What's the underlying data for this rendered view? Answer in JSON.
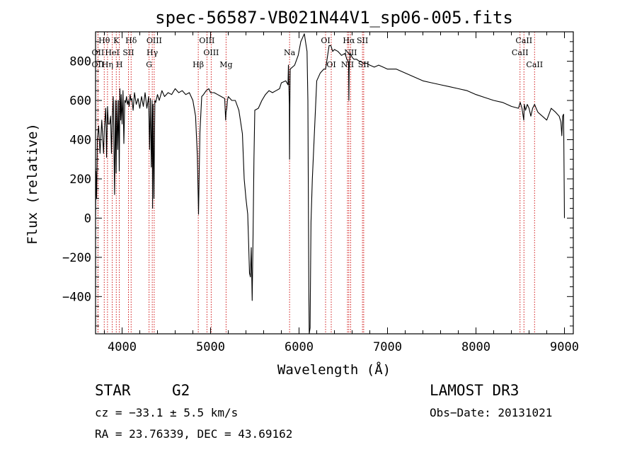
{
  "chart_data": {
    "type": "line",
    "title": "spec-56587-VB021N44V1_sp06-005.fits",
    "xlabel": "Wavelength (Å)",
    "ylabel": "Flux (relative)",
    "xlim": [
      3700,
      9100
    ],
    "ylim": [
      -590,
      950
    ],
    "x_ticks": [
      4000,
      5000,
      6000,
      7000,
      8000,
      9000
    ],
    "x_tick_labels": [
      "4000",
      "5000",
      "6000",
      "7000",
      "8000",
      "9000"
    ],
    "y_ticks": [
      -400,
      -200,
      0,
      200,
      400,
      600,
      800
    ],
    "y_tick_labels": [
      "−400",
      "−200",
      "0",
      "200",
      "400",
      "600",
      "800"
    ],
    "series": [
      {
        "name": "spectrum",
        "x": [
          3700,
          3705,
          3712,
          3720,
          3735,
          3750,
          3770,
          3790,
          3800,
          3815,
          3825,
          3835,
          3845,
          3860,
          3870,
          3880,
          3890,
          3900,
          3915,
          3925,
          3933,
          3941,
          3950,
          3960,
          3968,
          3975,
          3985,
          3990,
          4000,
          4010,
          4020,
          4030,
          4040,
          4050,
          4060,
          4070,
          4080,
          4090,
          4100,
          4110,
          4125,
          4140,
          4160,
          4180,
          4200,
          4220,
          4240,
          4260,
          4280,
          4300,
          4310,
          4320,
          4330,
          4340,
          4345,
          4350,
          4360,
          4370,
          4380,
          4400,
          4420,
          4450,
          4480,
          4520,
          4560,
          4600,
          4640,
          4680,
          4720,
          4760,
          4800,
          4830,
          4850,
          4860,
          4864,
          4870,
          4880,
          4900,
          4920,
          4950,
          4980,
          5000,
          5040,
          5080,
          5120,
          5160,
          5170,
          5175,
          5183,
          5190,
          5200,
          5240,
          5280,
          5320,
          5360,
          5380,
          5400,
          5420,
          5430,
          5440,
          5450,
          5460,
          5470,
          5480,
          5490,
          5500,
          5540,
          5580,
          5620,
          5660,
          5700,
          5740,
          5780,
          5800,
          5850,
          5875,
          5880,
          5890,
          5893,
          5896,
          5900,
          5950,
          5990,
          6020,
          6040,
          6060,
          6080,
          6090,
          6100,
          6110,
          6115,
          6125,
          6135,
          6150,
          6200,
          6240,
          6280,
          6300,
          6320,
          6340,
          6360,
          6380,
          6400,
          6440,
          6480,
          6520,
          6540,
          6555,
          6560,
          6563,
          6567,
          6570,
          6580,
          6600,
          6620,
          6650,
          6680,
          6700,
          6720,
          6760,
          6800,
          6850,
          6900,
          6950,
          7000,
          7100,
          7200,
          7300,
          7400,
          7500,
          7600,
          7700,
          7800,
          7900,
          8000,
          8100,
          8200,
          8300,
          8400,
          8480,
          8500,
          8520,
          8540,
          8546,
          8560,
          8580,
          8600,
          8620,
          8640,
          8662,
          8680,
          8700,
          8800,
          8850,
          8900,
          8940,
          8960,
          8970,
          8980,
          8990,
          9000
        ],
        "y": [
          10,
          240,
          100,
          400,
          470,
          330,
          500,
          330,
          460,
          560,
          310,
          570,
          480,
          480,
          520,
          330,
          520,
          620,
          120,
          600,
          230,
          600,
          350,
          600,
          240,
          660,
          500,
          630,
          480,
          650,
          380,
          600,
          590,
          620,
          580,
          600,
          570,
          630,
          600,
          610,
          550,
          640,
          580,
          610,
          560,
          620,
          570,
          640,
          560,
          620,
          350,
          610,
          260,
          600,
          50,
          580,
          100,
          600,
          590,
          630,
          600,
          650,
          620,
          640,
          630,
          660,
          640,
          650,
          630,
          640,
          600,
          520,
          320,
          110,
          20,
          200,
          440,
          620,
          630,
          650,
          660,
          640,
          640,
          630,
          620,
          610,
          500,
          540,
          560,
          600,
          620,
          600,
          600,
          550,
          430,
          200,
          100,
          20,
          -130,
          -280,
          -300,
          -150,
          -420,
          -100,
          300,
          550,
          560,
          600,
          630,
          650,
          640,
          650,
          660,
          690,
          700,
          680,
          780,
          580,
          300,
          560,
          760,
          780,
          830,
          900,
          920,
          940,
          880,
          850,
          600,
          -350,
          -590,
          -560,
          -20,
          200,
          700,
          740,
          760,
          760,
          820,
          880,
          880,
          850,
          860,
          850,
          830,
          840,
          810,
          800,
          780,
          600,
          790,
          800,
          840,
          820,
          810,
          810,
          800,
          800,
          790,
          790,
          780,
          770,
          780,
          770,
          760,
          760,
          740,
          720,
          700,
          690,
          680,
          670,
          660,
          650,
          630,
          615,
          600,
          590,
          570,
          560,
          590,
          560,
          500,
          580,
          550,
          580,
          560,
          520,
          560,
          580,
          560,
          540,
          500,
          560,
          540,
          520,
          490,
          420,
          520,
          530,
          0
        ]
      }
    ],
    "line_markers": [
      {
        "label": "Hθ",
        "wavelength": 3798,
        "row": 1
      },
      {
        "label": "K",
        "wavelength": 3934,
        "row": 1
      },
      {
        "label": "Hδ",
        "wavelength": 4102,
        "row": 1
      },
      {
        "label": "OII",
        "wavelength": 3727,
        "row": 2
      },
      {
        "label": "HeI",
        "wavelength": 3889,
        "row": 2
      },
      {
        "label": "SII",
        "wavelength": 4072,
        "row": 2
      },
      {
        "label": "OII",
        "wavelength": 3727,
        "row": 3
      },
      {
        "label": "Hη",
        "wavelength": 3835,
        "row": 3
      },
      {
        "label": "H",
        "wavelength": 3969,
        "row": 3
      },
      {
        "label": "OIII",
        "wavelength": 4363,
        "row": 1
      },
      {
        "label": "Hγ",
        "wavelength": 4341,
        "row": 2
      },
      {
        "label": "G",
        "wavelength": 4305,
        "row": 3
      },
      {
        "label": "OIII",
        "wavelength": 4959,
        "row": 1
      },
      {
        "label": "OIII",
        "wavelength": 5007,
        "row": 2
      },
      {
        "label": "Hβ",
        "wavelength": 4861,
        "row": 3
      },
      {
        "label": "Mg",
        "wavelength": 5175,
        "row": 3
      },
      {
        "label": "Na",
        "wavelength": 5893,
        "row": 2
      },
      {
        "label": "OI",
        "wavelength": 6300,
        "row": 1
      },
      {
        "label": "OI",
        "wavelength": 6364,
        "row": 3
      },
      {
        "label": "Hα",
        "wavelength": 6563,
        "row": 1
      },
      {
        "label": "SII",
        "wavelength": 6717,
        "row": 1
      },
      {
        "label": "NII",
        "wavelength": 6583,
        "row": 2
      },
      {
        "label": "NII",
        "wavelength": 6548,
        "row": 3
      },
      {
        "label": "SII",
        "wavelength": 6731,
        "row": 3
      },
      {
        "label": "CaII",
        "wavelength": 8542,
        "row": 1
      },
      {
        "label": "CaII",
        "wavelength": 8498,
        "row": 2
      },
      {
        "label": "CaII",
        "wavelength": 8662,
        "row": 3
      }
    ]
  },
  "info": {
    "object_class": "STAR",
    "subclass": "G2",
    "survey": "LAMOST DR3",
    "redshift": "cz = −33.1 ± 5.5 km/s",
    "obs_date": "Obs−Date: 20131021",
    "coords": "RA =  23.76339, DEC =  43.69162"
  },
  "colors": {
    "spectrum": "#000000",
    "marker": "#cc0000",
    "axis": "#000000",
    "background": "#ffffff"
  }
}
